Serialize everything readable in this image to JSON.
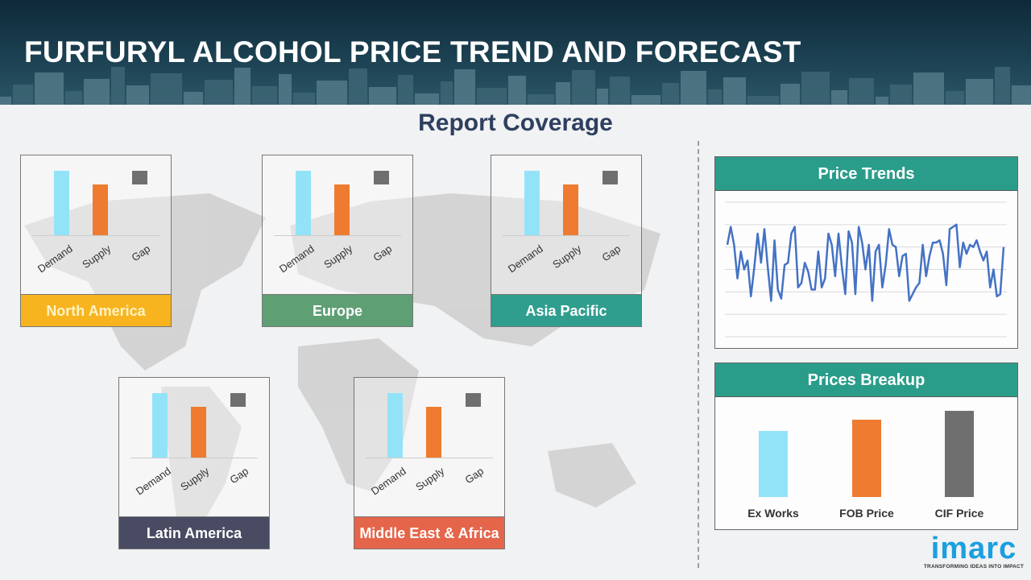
{
  "header": {
    "title": "FURFURYL ALCOHOL PRICE TREND AND FORECAST"
  },
  "section_title": "Report Coverage",
  "colors": {
    "demand": "#93e3f8",
    "supply": "#ee7b30",
    "gap": "#6f6f6f",
    "panel_header": "#2a9d8a",
    "line": "#4472c4",
    "header_bg": "#1d4354"
  },
  "regions": [
    {
      "name": "North America",
      "color": "#f7b41f",
      "text_color": "#fff3c4"
    },
    {
      "name": "Europe",
      "color": "#5e9f74",
      "text_color": "#ffffff"
    },
    {
      "name": "Asia Pacific",
      "color": "#2f9e8e",
      "text_color": "#ffffff"
    },
    {
      "name": "Latin America",
      "color": "#484b62",
      "text_color": "#ffffff"
    },
    {
      "name": "Middle East & Africa",
      "color": "#e5654a",
      "text_color": "#ffffff"
    }
  ],
  "chart_data": [
    {
      "type": "bar",
      "chart": "regional-demand-supply",
      "categories": [
        "Demand",
        "Supply",
        "Gap"
      ],
      "values": [
        100,
        79,
        21
      ],
      "note_gap_floating": true
    },
    {
      "type": "line",
      "title": "Price Trends",
      "grid": true,
      "ylim": [
        0,
        6
      ],
      "values": [
        4.1,
        4.9,
        4.1,
        2.6,
        3.8,
        3.0,
        3.4,
        1.8,
        3.1,
        4.6,
        3.3,
        4.8,
        3.1,
        1.6,
        4.3,
        2.1,
        1.7,
        3.2,
        3.3,
        4.6,
        4.9,
        2.2,
        2.4,
        3.3,
        2.9,
        2.1,
        2.1,
        3.8,
        2.2,
        2.6,
        4.6,
        4.1,
        2.7,
        4.6,
        3.1,
        1.9,
        4.7,
        4.2,
        1.9,
        4.9,
        4.2,
        3.0,
        4.1,
        1.6,
        3.8,
        4.1,
        2.2,
        3.2,
        4.8,
        4.1,
        4.0,
        2.7,
        3.6,
        3.7,
        1.6,
        1.9,
        2.2,
        2.4,
        4.1,
        2.7,
        3.6,
        4.2,
        4.2,
        4.3,
        3.7,
        2.3,
        4.8,
        4.9,
        5.0,
        3.1,
        4.2,
        3.7,
        4.1,
        4.0,
        4.3,
        3.8,
        3.4,
        3.8,
        2.2,
        3.0,
        1.8,
        1.9,
        4.0
      ]
    },
    {
      "type": "bar",
      "title": "Prices Breakup",
      "categories": [
        "Ex Works",
        "FOB Price",
        "CIF Price"
      ],
      "values": [
        77,
        90,
        100
      ],
      "colors": [
        "#93e3f8",
        "#ee7b30",
        "#6f6f6f"
      ]
    }
  ],
  "logo": {
    "word": "imarc",
    "tagline": "TRANSFORMING IDEAS INTO IMPACT"
  }
}
